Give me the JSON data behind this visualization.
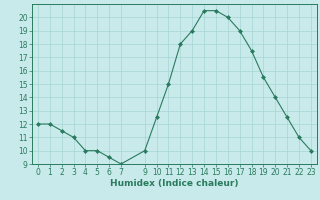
{
  "x": [
    0,
    1,
    2,
    3,
    4,
    5,
    6,
    7,
    9,
    10,
    11,
    12,
    13,
    14,
    15,
    16,
    17,
    18,
    19,
    20,
    21,
    22,
    23
  ],
  "y": [
    12,
    12,
    11.5,
    11,
    10,
    10,
    9.5,
    9,
    10,
    12.5,
    15,
    18,
    19,
    20.5,
    20.5,
    20,
    19,
    17.5,
    15.5,
    14,
    12.5,
    11,
    10
  ],
  "xlabel": "Humidex (Indice chaleur)",
  "xlim": [
    -0.5,
    23.5
  ],
  "ylim": [
    9,
    21
  ],
  "yticks": [
    9,
    10,
    11,
    12,
    13,
    14,
    15,
    16,
    17,
    18,
    19,
    20
  ],
  "xticks": [
    0,
    1,
    2,
    3,
    4,
    5,
    6,
    7,
    9,
    10,
    11,
    12,
    13,
    14,
    15,
    16,
    17,
    18,
    19,
    20,
    21,
    22,
    23
  ],
  "line_color": "#2a7b5e",
  "marker": "D",
  "marker_size": 2.0,
  "bg_color": "#c8eaea",
  "grid_color": "#a8d4d4",
  "axis_color": "#2a7b5e",
  "xlabel_fontsize": 6.5,
  "tick_fontsize": 5.5,
  "linewidth": 0.8
}
